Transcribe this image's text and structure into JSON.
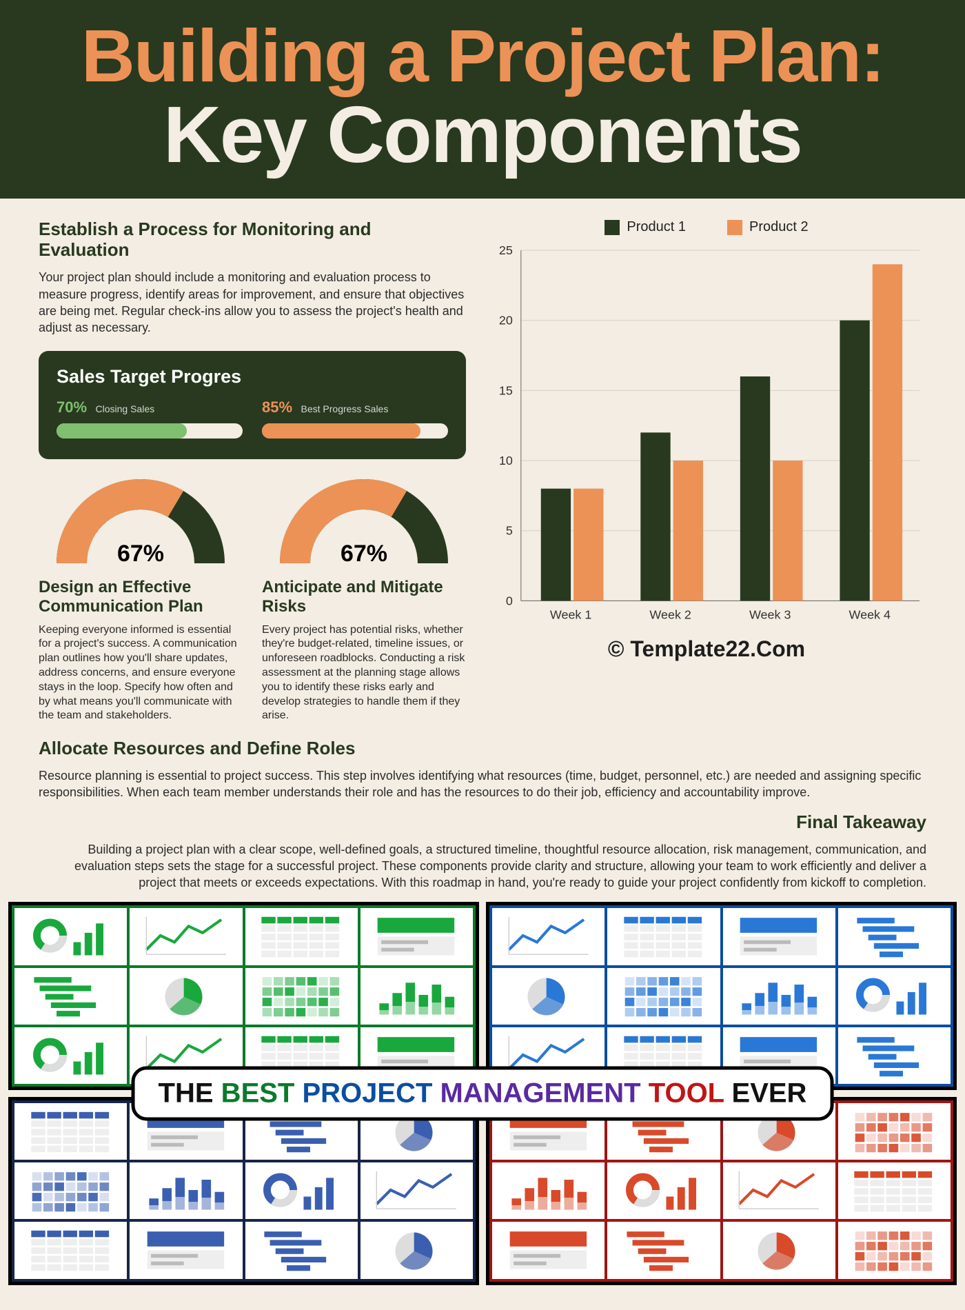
{
  "hero": {
    "line1": "Building a Project Plan:",
    "line2": "Key Components",
    "bg_color": "#28391f",
    "line1_color": "#ec9256",
    "line2_color": "#f3ede3"
  },
  "monitoring": {
    "title": "Establish a Process for Monitoring and Evaluation",
    "body": "Your project plan should include a monitoring and evaluation process to measure progress, identify areas for improvement, and ensure that objectives are being met. Regular check-ins allow you to assess the project's health and adjust as necessary."
  },
  "sales_card": {
    "title": "Sales Target Progres",
    "metrics": [
      {
        "pct": "70%",
        "label": "Closing Sales",
        "fill_pct": 70,
        "color": "#7fbf6f"
      },
      {
        "pct": "85%",
        "label": "Best Progress Sales",
        "fill_pct": 85,
        "color": "#ec9256"
      }
    ],
    "bg_color": "#28391f",
    "track_color": "#f3ede3"
  },
  "gauges": [
    {
      "value_text": "67%",
      "value": 67,
      "fg_color": "#ec9256",
      "bg_color": "#28391f",
      "title": "Design an Effective Communication Plan",
      "body": "Keeping everyone informed is essential for a project's success. A communication plan outlines how you'll share updates, address concerns, and ensure everyone stays in the loop. Specify how often and by what means you'll communicate with the team and stakeholders."
    },
    {
      "value_text": "67%",
      "value": 67,
      "fg_color": "#ec9256",
      "bg_color": "#28391f",
      "title": "Anticipate and Mitigate Risks",
      "body": "Every project has potential risks, whether they're budget-related, timeline issues, or unforeseen roadblocks. Conducting a risk assessment at the planning stage allows you to identify these risks early and develop strategies to handle them if they arise."
    }
  ],
  "bar_chart": {
    "type": "bar",
    "legend": [
      {
        "label": "Product 1",
        "color": "#28391f"
      },
      {
        "label": "Product 2",
        "color": "#ec9256"
      }
    ],
    "categories": [
      "Week 1",
      "Week 2",
      "Week 3",
      "Week 4"
    ],
    "series": {
      "product1": [
        8,
        12,
        16,
        20
      ],
      "product2": [
        8,
        10,
        10,
        24
      ]
    },
    "ylim": [
      0,
      25
    ],
    "ytick_step": 5,
    "grid_color": "#d6d0c6",
    "axis_color": "#666",
    "label_fontsize": 18,
    "bar_group_gap": 0.4,
    "watermark": "© Template22.Com"
  },
  "allocate": {
    "title": "Allocate Resources and Define Roles",
    "body": "Resource planning is essential to project success. This step involves identifying what resources (time, budget, personnel, etc.) are needed and assigning specific responsibilities. When each team member understands their role and has the resources to do their job, efficiency and accountability improve."
  },
  "takeaway": {
    "title": "Final Takeaway",
    "body": "Building a project plan with a clear scope, well-defined goals, a structured timeline, thoughtful resource allocation, risk management, communication, and evaluation steps sets the stage for a successful project. These components provide clarity and structure, allowing your team to work efficiently and deliver a project that meets or exceeds expectations. With this roadmap in hand, you're ready to guide your project confidently from kickoff to completion."
  },
  "collage": {
    "quadrants": [
      {
        "color": "#0b7a2a",
        "accent": "#19a83d"
      },
      {
        "color": "#0a4ea0",
        "accent": "#2a78d6"
      },
      {
        "color": "#17244a",
        "accent": "#3b5fb0"
      },
      {
        "color": "#a01515",
        "accent": "#d84a2a"
      }
    ],
    "banner_words": [
      {
        "text": "THE ",
        "color": "#111"
      },
      {
        "text": "BEST ",
        "color": "#0b7a2a"
      },
      {
        "text": "PROJECT ",
        "color": "#0a4ea0"
      },
      {
        "text": "MANAGEMENT ",
        "color": "#5a2aa0"
      },
      {
        "text": "TOOL ",
        "color": "#c01515"
      },
      {
        "text": "EVER",
        "color": "#111"
      }
    ]
  }
}
